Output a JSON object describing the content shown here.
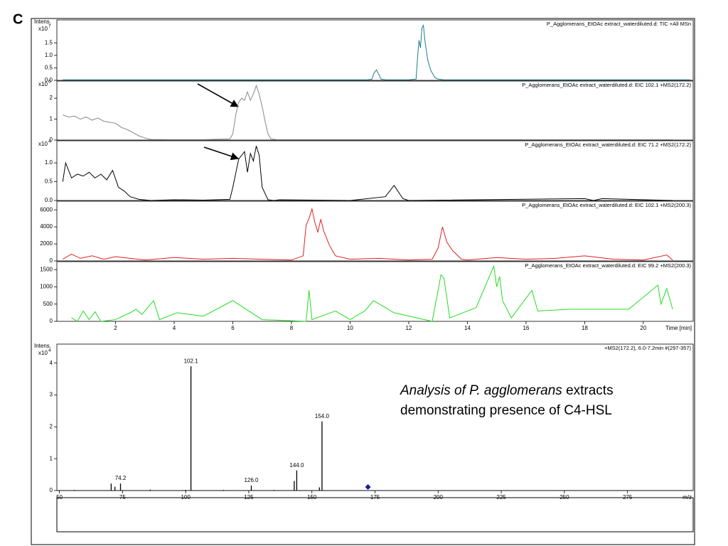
{
  "panel_label": "C",
  "chart_data": [
    {
      "type": "line",
      "title": "P_Agglomerans_EtOAc extract_waterdiluted.d: TIC +All MSn",
      "y_label": "Intens.",
      "y_multiplier": "x10",
      "y_exponent": "7",
      "xlim": [
        0,
        21.7
      ],
      "ylim": [
        0,
        2.36
      ],
      "yticks": [
        {
          "value": 0,
          "label": "0.0"
        },
        0.5,
        {
          "value": 1,
          "label": "1.0"
        },
        1.5
      ],
      "series": [
        {
          "color": "#1f7a8c",
          "x": [
            0.2,
            10.6,
            10.75,
            10.8,
            10.85,
            10.9,
            10.95,
            11.0,
            11.05,
            11.2,
            12.0,
            12.25,
            12.3,
            12.35,
            12.4,
            12.45,
            12.5,
            12.55,
            12.6,
            12.65,
            12.7,
            12.75,
            12.8,
            12.85,
            12.9,
            13.0,
            13.2,
            21.6
          ],
          "values": [
            0.02,
            0.02,
            0.05,
            0.25,
            0.35,
            0.42,
            0.3,
            0.2,
            0.05,
            0.02,
            0.02,
            0.05,
            0.9,
            1.6,
            1.3,
            2.1,
            2.2,
            1.6,
            1.2,
            0.8,
            0.6,
            0.4,
            0.3,
            0.2,
            0.1,
            0.05,
            0.02,
            0.02
          ]
        }
      ]
    },
    {
      "type": "line",
      "title": "P_Agglomerans_EtOAc extract_waterdiluted.d: EIC 102.1 +MS2(172.2)",
      "y_multiplier": "x10",
      "y_exponent": "5",
      "xlim": [
        0,
        21.7
      ],
      "ylim": [
        0,
        2.75
      ],
      "yticks": [
        0,
        1,
        2
      ],
      "series": [
        {
          "color": "#888888",
          "x": [
            0.2,
            0.4,
            0.6,
            0.8,
            1.0,
            1.2,
            1.4,
            1.6,
            1.8,
            2.0,
            2.2,
            2.4,
            2.6,
            2.8,
            3.0,
            3.2,
            4.0,
            5.0,
            5.9,
            6.0,
            6.1,
            6.2,
            6.3,
            6.4,
            6.5,
            6.6,
            6.7,
            6.8,
            6.9,
            7.0,
            7.1,
            7.2,
            7.3,
            7.5,
            9,
            12,
            21
          ],
          "values": [
            1.2,
            1.1,
            1.15,
            1.0,
            1.1,
            0.95,
            1.05,
            0.9,
            0.85,
            0.8,
            0.6,
            0.5,
            0.35,
            0.2,
            0.1,
            0.03,
            0.02,
            0.02,
            0.05,
            0.3,
            1.2,
            1.8,
            2.0,
            1.9,
            2.3,
            1.9,
            2.2,
            2.6,
            2.2,
            1.6,
            0.9,
            0.3,
            0.05,
            0.02,
            0.02,
            0.02,
            0.02
          ]
        }
      ]
    },
    {
      "type": "line",
      "title": "P_Agglomerans_EtOAc extract_waterdiluted.d: EIC 71.2 +MS2(172.2)",
      "y_multiplier": "x10",
      "y_exponent": "4",
      "xlim": [
        0,
        21.7
      ],
      "ylim": [
        0,
        1.55
      ],
      "yticks": [
        {
          "value": 0,
          "label": "0.0"
        },
        0.5,
        {
          "value": 1,
          "label": "1.0"
        }
      ],
      "series": [
        {
          "color": "#000000",
          "x": [
            0.2,
            0.3,
            0.5,
            0.7,
            0.9,
            1.1,
            1.3,
            1.5,
            1.7,
            1.9,
            2.1,
            2.3,
            2.5,
            2.8,
            3.2,
            4,
            5,
            5.9,
            6.0,
            6.2,
            6.4,
            6.5,
            6.6,
            6.7,
            6.8,
            6.9,
            7.0,
            7.2,
            7.4,
            7.6,
            10,
            11.2,
            11.5,
            11.8,
            12,
            18,
            18.3,
            18.6,
            21
          ],
          "values": [
            0.5,
            1.0,
            0.6,
            0.7,
            0.65,
            0.75,
            0.6,
            0.7,
            0.55,
            0.8,
            0.35,
            0.25,
            0.1,
            0.03,
            0.0,
            0.02,
            0.01,
            0.03,
            0.35,
            1.1,
            1.3,
            0.75,
            1.25,
            1.05,
            1.45,
            1.2,
            0.35,
            0.02,
            0.0,
            0.02,
            0.0,
            0.1,
            0.4,
            0.05,
            0.0,
            0.05,
            0.0,
            0.05,
            0.0
          ]
        }
      ]
    },
    {
      "type": "line",
      "title": "P_Agglomerans_EtOAc extract_waterdiluted.d: EIC 102.1 +MS2(200.3)",
      "xlim": [
        0,
        21.7
      ],
      "ylim": [
        0,
        6850
      ],
      "yticks": [
        0,
        2000,
        4000,
        6000
      ],
      "series": [
        {
          "color": "#e02020",
          "x": [
            0.2,
            0.5,
            0.8,
            1.2,
            1.6,
            2.0,
            2.5,
            3.0,
            4.0,
            5.0,
            6.0,
            7.0,
            8.0,
            8.4,
            8.5,
            8.6,
            8.7,
            8.8,
            8.9,
            9.0,
            9.1,
            9.3,
            9.5,
            10,
            11,
            12,
            12.8,
            13.0,
            13.15,
            13.3,
            13.5,
            13.8,
            14,
            15,
            16,
            17,
            18,
            19,
            20,
            20.8,
            21
          ],
          "values": [
            200,
            800,
            300,
            600,
            200,
            500,
            300,
            100,
            400,
            200,
            300,
            200,
            100,
            600,
            4200,
            5000,
            6100,
            4500,
            3400,
            4900,
            3500,
            1800,
            600,
            200,
            300,
            100,
            200,
            1500,
            4000,
            2200,
            1200,
            200,
            100,
            400,
            200,
            300,
            600,
            200,
            100,
            700,
            100
          ]
        }
      ]
    },
    {
      "type": "line",
      "title": "P_Agglomerans_EtOAc extract_waterdiluted.d: EIC 99.2 +MS2(200.3)",
      "x_label": "Time [min]",
      "xlim": [
        0,
        21.7
      ],
      "xticks": [
        2,
        4,
        6,
        8,
        10,
        12,
        14,
        16,
        18,
        20
      ],
      "ylim": [
        0,
        1690
      ],
      "yticks": [
        0,
        500,
        1000,
        1500
      ],
      "series": [
        {
          "color": "#22dd22",
          "x": [
            0.5,
            0.7,
            0.9,
            1.1,
            1.3,
            1.5,
            2.0,
            2.5,
            2.7,
            2.9,
            3.3,
            3.5,
            4.1,
            5.0,
            6.0,
            7.0,
            8.5,
            8.6,
            8.7,
            9.5,
            10.0,
            10.5,
            10.8,
            11.5,
            12.8,
            13.1,
            13.2,
            13.4,
            14.3,
            14.9,
            15.0,
            15.1,
            15.2,
            15.5,
            16.2,
            16.4,
            17.5,
            19.5,
            20.5,
            20.6,
            20.8,
            21.0
          ],
          "values": [
            100,
            0,
            300,
            50,
            280,
            0,
            50,
            250,
            350,
            200,
            600,
            50,
            250,
            150,
            600,
            50,
            0,
            900,
            50,
            300,
            50,
            300,
            600,
            250,
            0,
            1350,
            1250,
            100,
            400,
            1600,
            1000,
            1300,
            600,
            100,
            900,
            300,
            350,
            350,
            1050,
            500,
            950,
            350
          ]
        }
      ]
    },
    {
      "type": "stem",
      "title": "+MS2(172.2), 6.0-7.2min #(297-357)",
      "y_label": "Intens.",
      "y_multiplier": "x10",
      "y_exponent": "4",
      "x_label": "m/z",
      "xlim": [
        49,
        301
      ],
      "xticks": [
        50,
        75,
        100,
        125,
        150,
        175,
        200,
        225,
        250,
        275
      ],
      "ylim": [
        0,
        4.55
      ],
      "yticks": [
        0,
        1,
        2,
        3,
        4
      ],
      "series": [
        {
          "color": "#000000",
          "x": [
            56,
            70.5,
            72,
            74.2,
            86,
            100,
            102.1,
            115,
            126.0,
            135,
            143,
            144.0,
            153,
            154.0
          ],
          "values": [
            0.02,
            0.22,
            0.12,
            0.22,
            0.03,
            0.02,
            3.9,
            0.02,
            0.16,
            0.02,
            0.3,
            0.63,
            0.1,
            2.17
          ]
        }
      ],
      "peak_labels": [
        {
          "value": 74.2,
          "label": "74.2"
        },
        {
          "value": 102.1,
          "label": "102.1"
        },
        {
          "value": 126.0,
          "label": "126.0"
        },
        {
          "value": 144.0,
          "label": "144.0"
        },
        {
          "value": 154.0,
          "label": "154.0"
        }
      ],
      "precursor": 172.2,
      "precursor_color": "#1a1aa0",
      "annotation": {
        "italic": "Analysis of P. agglomerans",
        "rest": "extracts",
        "line2": "demonstrating presence of C4-HSL"
      }
    }
  ]
}
